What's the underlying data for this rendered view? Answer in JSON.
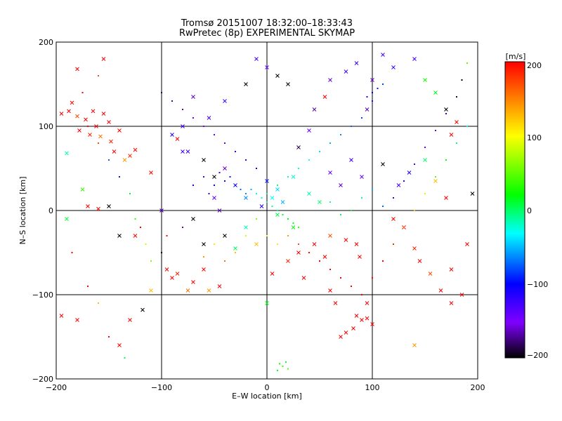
{
  "chart_data": {
    "type": "scatter",
    "title": "Tromsø 20151007 18:32:00–18:33:43",
    "subtitle": "RwPretec (8p) EXPERIMENTAL SKYMAP",
    "xlabel": "E–W location [km]",
    "ylabel": "N–S location [km]",
    "xlim": [
      -200,
      200
    ],
    "ylim": [
      -200,
      200
    ],
    "xticks": [
      "−200",
      "−100",
      "0",
      "100",
      "200"
    ],
    "yticks": [
      "200",
      "100",
      "0",
      "−100",
      "−200"
    ],
    "grid": true,
    "colorbar": {
      "label": "[m/s]",
      "range": [
        -200,
        200
      ],
      "ticks": [
        "200",
        "100",
        "0",
        "−100",
        "−200"
      ],
      "position": "right"
    },
    "colormap": [
      "#000000",
      "#7f00ff",
      "#0000ff",
      "#00ffff",
      "#00ff00",
      "#ffff00",
      "#ff0000"
    ],
    "series": [
      {
        "marker": "x",
        "points": [
          [
            -195,
            115,
            200
          ],
          [
            -188,
            118,
            200
          ],
          [
            -185,
            128,
            200
          ],
          [
            -180,
            112,
            180
          ],
          [
            -178,
            95,
            200
          ],
          [
            -172,
            108,
            200
          ],
          [
            -168,
            90,
            190
          ],
          [
            -165,
            118,
            200
          ],
          [
            -162,
            100,
            200
          ],
          [
            -158,
            88,
            170
          ],
          [
            -155,
            115,
            200
          ],
          [
            -150,
            105,
            200
          ],
          [
            -148,
            82,
            190
          ],
          [
            -145,
            70,
            200
          ],
          [
            -140,
            95,
            200
          ],
          [
            -135,
            60,
            160
          ],
          [
            -180,
            168,
            200
          ],
          [
            -155,
            180,
            200
          ],
          [
            -130,
            65,
            190
          ],
          [
            -125,
            72,
            200
          ],
          [
            -190,
            68,
            20
          ],
          [
            -175,
            25,
            80
          ],
          [
            -170,
            5,
            200
          ],
          [
            -160,
            2,
            200
          ],
          [
            -150,
            5,
            -200
          ],
          [
            -140,
            -30,
            -200
          ],
          [
            -125,
            -30,
            200
          ],
          [
            -118,
            -118,
            -200
          ],
          [
            -110,
            45,
            200
          ],
          [
            -90,
            90,
            -80
          ],
          [
            -85,
            85,
            200
          ],
          [
            -80,
            70,
            -100
          ],
          [
            -95,
            -70,
            200
          ],
          [
            -90,
            -80,
            200
          ],
          [
            -85,
            -75,
            190
          ],
          [
            -75,
            -95,
            170
          ],
          [
            -70,
            -85,
            200
          ],
          [
            -60,
            -70,
            200
          ],
          [
            -55,
            -95,
            160
          ],
          [
            -45,
            -90,
            200
          ],
          [
            -40,
            -30,
            -200
          ],
          [
            -50,
            15,
            -120
          ],
          [
            -30,
            -45,
            40
          ],
          [
            -20,
            -20,
            20
          ],
          [
            -10,
            -40,
            150
          ],
          [
            5,
            -75,
            200
          ],
          [
            20,
            -60,
            190
          ],
          [
            30,
            -50,
            200
          ],
          [
            35,
            -80,
            200
          ],
          [
            45,
            -40,
            200
          ],
          [
            55,
            -55,
            200
          ],
          [
            60,
            -30,
            180
          ],
          [
            75,
            -35,
            200
          ],
          [
            85,
            -40,
            200
          ],
          [
            88,
            -55,
            200
          ],
          [
            95,
            -110,
            200
          ],
          [
            85,
            -125,
            200
          ],
          [
            90,
            -130,
            200
          ],
          [
            95,
            -128,
            200
          ],
          [
            82,
            -140,
            200
          ],
          [
            75,
            -145,
            200
          ],
          [
            70,
            -150,
            200
          ],
          [
            100,
            -135,
            200
          ],
          [
            65,
            -110,
            200
          ],
          [
            60,
            -95,
            200
          ],
          [
            120,
            -10,
            200
          ],
          [
            130,
            -20,
            200
          ],
          [
            140,
            -45,
            190
          ],
          [
            145,
            -60,
            200
          ],
          [
            155,
            -75,
            180
          ],
          [
            165,
            -95,
            200
          ],
          [
            175,
            -70,
            200
          ],
          [
            185,
            -100,
            200
          ],
          [
            180,
            105,
            200
          ],
          [
            175,
            90,
            200
          ],
          [
            170,
            120,
            -200
          ],
          [
            160,
            140,
            60
          ],
          [
            150,
            155,
            70
          ],
          [
            140,
            180,
            -100
          ],
          [
            120,
            170,
            -100
          ],
          [
            110,
            185,
            -100
          ],
          [
            100,
            155,
            -150
          ],
          [
            95,
            120,
            -150
          ],
          [
            85,
            175,
            -100
          ],
          [
            75,
            165,
            -100
          ],
          [
            60,
            155,
            -150
          ],
          [
            55,
            135,
            200
          ],
          [
            45,
            120,
            -150
          ],
          [
            40,
            95,
            -120
          ],
          [
            30,
            75,
            -180
          ],
          [
            20,
            150,
            -200
          ],
          [
            10,
            160,
            -200
          ],
          [
            0,
            170,
            -130
          ],
          [
            -10,
            180,
            -100
          ],
          [
            -20,
            150,
            -200
          ],
          [
            -40,
            130,
            -100
          ],
          [
            -55,
            110,
            -100
          ],
          [
            -70,
            135,
            -150
          ],
          [
            -80,
            100,
            -100
          ],
          [
            -75,
            70,
            -100
          ],
          [
            -60,
            60,
            -200
          ],
          [
            -50,
            40,
            -200
          ],
          [
            -40,
            50,
            -150
          ],
          [
            -30,
            30,
            -80
          ],
          [
            -20,
            15,
            -30
          ],
          [
            0,
            35,
            -60
          ],
          [
            10,
            25,
            -10
          ],
          [
            25,
            40,
            10
          ],
          [
            40,
            20,
            20
          ],
          [
            50,
            10,
            40
          ],
          [
            60,
            45,
            -120
          ],
          [
            70,
            30,
            -150
          ],
          [
            80,
            60,
            -100
          ],
          [
            90,
            40,
            -120
          ],
          [
            110,
            55,
            -200
          ],
          [
            125,
            30,
            -100
          ],
          [
            135,
            45,
            -80
          ],
          [
            150,
            60,
            40
          ],
          [
            160,
            35,
            150
          ],
          [
            170,
            15,
            200
          ],
          [
            -190,
            -10,
            50
          ],
          [
            -180,
            -130,
            200
          ],
          [
            -140,
            -160,
            200
          ],
          [
            -130,
            -130,
            200
          ],
          [
            -110,
            -95,
            150
          ],
          [
            -100,
            0,
            -150
          ],
          [
            -70,
            -10,
            -200
          ],
          [
            -60,
            -40,
            -200
          ],
          [
            -45,
            0,
            -150
          ],
          [
            0,
            -110,
            60
          ],
          [
            25,
            -20,
            60
          ],
          [
            10,
            -5,
            50
          ],
          [
            -5,
            5,
            -80
          ],
          [
            15,
            10,
            -20
          ],
          [
            5,
            15,
            0
          ],
          [
            140,
            -160,
            160
          ],
          [
            175,
            -110,
            200
          ],
          [
            190,
            -40,
            200
          ],
          [
            195,
            20,
            -200
          ],
          [
            -195,
            -125,
            200
          ]
        ]
      },
      {
        "marker": "dot",
        "points": [
          [
            -120,
            -20,
            200
          ],
          [
            -100,
            -50,
            -200
          ],
          [
            -95,
            -30,
            200
          ],
          [
            -80,
            -20,
            -150
          ],
          [
            -70,
            30,
            -80
          ],
          [
            -60,
            40,
            -100
          ],
          [
            -55,
            20,
            -90
          ],
          [
            -50,
            30,
            -70
          ],
          [
            -45,
            45,
            -90
          ],
          [
            -40,
            35,
            -70
          ],
          [
            -35,
            40,
            -60
          ],
          [
            -30,
            30,
            -60
          ],
          [
            -25,
            25,
            -40
          ],
          [
            -20,
            20,
            -30
          ],
          [
            -15,
            25,
            -20
          ],
          [
            -10,
            20,
            0
          ],
          [
            -5,
            15,
            10
          ],
          [
            0,
            10,
            20
          ],
          [
            5,
            5,
            30
          ],
          [
            10,
            0,
            40
          ],
          [
            15,
            -5,
            50
          ],
          [
            20,
            -10,
            60
          ],
          [
            25,
            -15,
            70
          ],
          [
            30,
            -20,
            80
          ],
          [
            -10,
            -10,
            100
          ],
          [
            -20,
            -30,
            120
          ],
          [
            -30,
            -50,
            150
          ],
          [
            -40,
            -60,
            170
          ],
          [
            -50,
            -40,
            140
          ],
          [
            -60,
            -55,
            160
          ],
          [
            0,
            -30,
            130
          ],
          [
            10,
            -40,
            140
          ],
          [
            20,
            -30,
            160
          ],
          [
            30,
            -40,
            180
          ],
          [
            40,
            -50,
            200
          ],
          [
            50,
            -60,
            200
          ],
          [
            60,
            -70,
            200
          ],
          [
            70,
            -80,
            200
          ],
          [
            80,
            -90,
            200
          ],
          [
            90,
            -100,
            200
          ],
          [
            100,
            -80,
            200
          ],
          [
            110,
            -60,
            200
          ],
          [
            120,
            -40,
            190
          ],
          [
            130,
            -20,
            170
          ],
          [
            140,
            0,
            150
          ],
          [
            150,
            20,
            120
          ],
          [
            160,
            40,
            90
          ],
          [
            170,
            60,
            60
          ],
          [
            180,
            80,
            30
          ],
          [
            190,
            100,
            0
          ],
          [
            100,
            140,
            -70
          ],
          [
            105,
            145,
            -60
          ],
          [
            110,
            150,
            -50
          ],
          [
            95,
            135,
            -80
          ],
          [
            100,
            130,
            -60
          ],
          [
            90,
            110,
            -50
          ],
          [
            80,
            100,
            -40
          ],
          [
            70,
            90,
            -30
          ],
          [
            60,
            80,
            -20
          ],
          [
            50,
            70,
            -10
          ],
          [
            40,
            60,
            0
          ],
          [
            30,
            50,
            10
          ],
          [
            20,
            40,
            20
          ],
          [
            10,
            30,
            30
          ],
          [
            0,
            20,
            40
          ],
          [
            -10,
            50,
            -80
          ],
          [
            -20,
            60,
            -90
          ],
          [
            -30,
            70,
            -100
          ],
          [
            -40,
            80,
            -110
          ],
          [
            -50,
            90,
            -120
          ],
          [
            -60,
            100,
            -130
          ],
          [
            -70,
            110,
            -140
          ],
          [
            -80,
            120,
            -150
          ],
          [
            -90,
            130,
            -160
          ],
          [
            -100,
            140,
            -170
          ],
          [
            15,
            -185,
            80
          ],
          [
            10,
            -190,
            60
          ],
          [
            20,
            -188,
            90
          ],
          [
            18,
            -180,
            50
          ],
          [
            12,
            -182,
            70
          ],
          [
            -110,
            -60,
            100
          ],
          [
            -115,
            -40,
            120
          ],
          [
            -125,
            -10,
            80
          ],
          [
            -130,
            20,
            60
          ],
          [
            -140,
            40,
            -60
          ],
          [
            -150,
            60,
            -40
          ],
          [
            -160,
            80,
            180
          ],
          [
            -170,
            100,
            200
          ],
          [
            -175,
            140,
            200
          ],
          [
            -160,
            160,
            180
          ],
          [
            -185,
            -50,
            200
          ],
          [
            -170,
            -90,
            200
          ],
          [
            -160,
            -110,
            150
          ],
          [
            -150,
            -150,
            200
          ],
          [
            -135,
            -175,
            40
          ],
          [
            60,
            10,
            20
          ],
          [
            70,
            -5,
            40
          ],
          [
            80,
            0,
            60
          ],
          [
            90,
            15,
            30
          ],
          [
            100,
            25,
            -20
          ],
          [
            110,
            5,
            -40
          ],
          [
            120,
            15,
            -60
          ],
          [
            130,
            35,
            -80
          ],
          [
            140,
            55,
            -100
          ],
          [
            150,
            75,
            -120
          ],
          [
            160,
            95,
            -140
          ],
          [
            170,
            115,
            -160
          ],
          [
            180,
            135,
            -180
          ],
          [
            185,
            155,
            -200
          ],
          [
            190,
            175,
            90
          ]
        ]
      }
    ]
  }
}
